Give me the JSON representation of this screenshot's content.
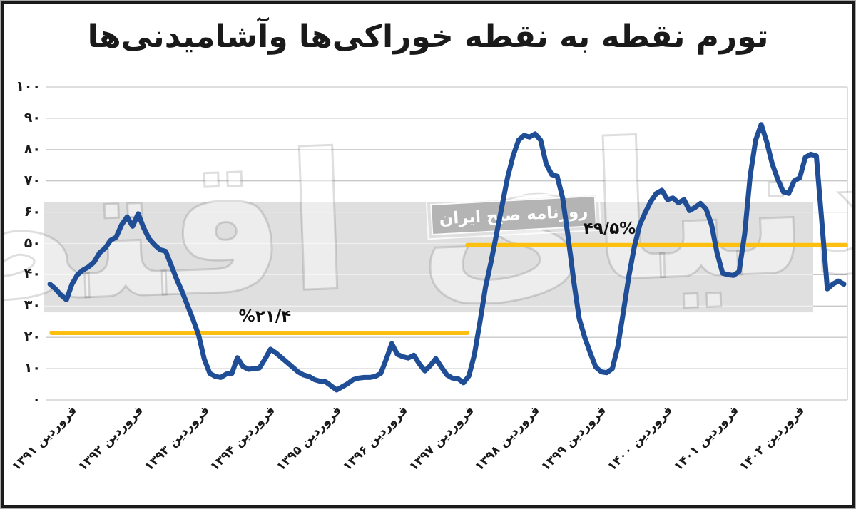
{
  "title": "تورم نقطه به نقطه خوراکی‌ها وآشامیدنی‌ها",
  "watermark": {
    "logo_text": "دنیای اقتصاد",
    "badge_text": "روزنامه صبح ایران"
  },
  "chart_data": {
    "type": "line",
    "title": "تورم نقطه به نقطه خوراکی‌ها وآشامیدنی‌ها",
    "xlabel": "",
    "ylabel": "",
    "ylim": [
      0,
      100
    ],
    "grid": "horizontal",
    "y_tick_values": [
      100,
      90,
      80,
      70,
      60,
      50,
      40,
      30,
      20,
      10,
      0
    ],
    "y_tick_labels": [
      "۱۰۰",
      "۹۰",
      "۸۰",
      "۷۰",
      "۶۰",
      "۵۰",
      "۴۰",
      "۳۰",
      "۲۰",
      "۱۰",
      "۰"
    ],
    "x_tick_every_months": 12,
    "x_tick_labels": [
      "فروردین ۱۳۹۱",
      "فروردین ۱۳۹۲",
      "فروردین ۱۳۹۳",
      "فروردین ۱۳۹۴",
      "فروردین ۱۳۹۵",
      "فروردین ۱۳۹۶",
      "فروردین ۱۳۹۷",
      "فروردین ۱۳۹۸",
      "فروردین ۱۳۹۹",
      "فروردین ۱۴۰۰",
      "فروردین ۱۴۰۱",
      "فروردین ۱۴۰۲"
    ],
    "series": [
      {
        "name": "تورم نقطه به نقطه خوراکی‌ها وآشامیدنی‌ها (درصد)",
        "color": "#1f4e96",
        "start_month": "فروردین ۱۳۹۱",
        "monthly_values": [
          37,
          35.5,
          33.5,
          32,
          37,
          40,
          41.5,
          42.5,
          44,
          47,
          48.5,
          51,
          52,
          56,
          58.5,
          55.5,
          59.5,
          55,
          51.5,
          49.5,
          48,
          47.5,
          43,
          38.5,
          34.5,
          30,
          25.5,
          20.5,
          13,
          8.5,
          7.5,
          7.2,
          8.3,
          8.5,
          13.5,
          10.7,
          9.8,
          10,
          10.2,
          13,
          16.2,
          15,
          13.5,
          12,
          10.5,
          9,
          8,
          7.5,
          6.5,
          6,
          5.8,
          4.5,
          3.2,
          4.2,
          5.2,
          6.5,
          7,
          7.2,
          7.2,
          7.5,
          8.5,
          13,
          18,
          14.6,
          13.8,
          13.4,
          14.3,
          11.5,
          9.3,
          11,
          13.2,
          10.5,
          8,
          7,
          6.8,
          5.5,
          7.7,
          14.5,
          25,
          36,
          44,
          53,
          62,
          71,
          78,
          83,
          84.5,
          84,
          85,
          83,
          75.5,
          72,
          71.5,
          64.5,
          52,
          38,
          26,
          20,
          15,
          10.5,
          9,
          8.7,
          10,
          17,
          28,
          39.5,
          49,
          56,
          60,
          63.5,
          66,
          67,
          64,
          64.5,
          63,
          64,
          60.5,
          61.5,
          62.8,
          61,
          56,
          47,
          40.5,
          40,
          39.8,
          41,
          53,
          71.5,
          83,
          88,
          82.5,
          75.5,
          70.5,
          66.5,
          66,
          70,
          71,
          77.5,
          78.5,
          78,
          57,
          35.5,
          37,
          38,
          37
        ]
      }
    ],
    "reference_lines": [
      {
        "label": "%۲۱/۴",
        "value": 21.4,
        "color": "#fdc010",
        "span_months": [
          0.3,
          75.7
        ],
        "label_month": 39
      },
      {
        "label": "۴۹/۵%",
        "value": 49.5,
        "color": "#fdc010",
        "span_months": [
          75.7,
          144.4
        ],
        "label_month": 101.5
      }
    ],
    "highlight_band": {
      "from": 28,
      "to": 63.2,
      "color": "#dfdfdf"
    },
    "legend": "none"
  }
}
